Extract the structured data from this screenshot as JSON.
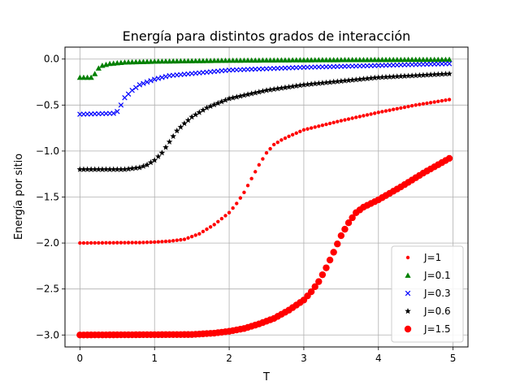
{
  "chart_data": {
    "type": "scatter",
    "title": "Energía para distintos grados de interacción",
    "xlabel": "T",
    "ylabel": "Energía por sitio",
    "xlim": [
      -0.2,
      5.2
    ],
    "ylim": [
      -3.13,
      0.13
    ],
    "xticks": [
      0,
      1,
      2,
      3,
      4,
      5
    ],
    "xtick_labels": [
      "0",
      "1",
      "2",
      "3",
      "4",
      "5"
    ],
    "yticks": [
      0.0,
      -0.5,
      -1.0,
      -1.5,
      -2.0,
      -2.5,
      -3.0
    ],
    "ytick_labels": [
      "0.0",
      "−0.5",
      "−1.0",
      "−1.5",
      "−2.0",
      "−2.5",
      "−3.0"
    ],
    "grid": true,
    "legend_position": "lower-right",
    "x_range": [
      0,
      4.95
    ],
    "x_step": 0.05,
    "series": [
      {
        "name": "J=1",
        "marker": "dot",
        "color": "#ff0000",
        "curve": [
          [
            0,
            -2.0
          ],
          [
            0.8,
            -1.995
          ],
          [
            1.0,
            -1.99
          ],
          [
            1.2,
            -1.98
          ],
          [
            1.4,
            -1.96
          ],
          [
            1.6,
            -1.9
          ],
          [
            1.8,
            -1.8
          ],
          [
            2.0,
            -1.67
          ],
          [
            2.1,
            -1.57
          ],
          [
            2.2,
            -1.45
          ],
          [
            2.3,
            -1.3
          ],
          [
            2.4,
            -1.15
          ],
          [
            2.5,
            -1.02
          ],
          [
            2.6,
            -0.93
          ],
          [
            2.7,
            -0.88
          ],
          [
            2.8,
            -0.84
          ],
          [
            3.0,
            -0.77
          ],
          [
            3.2,
            -0.73
          ],
          [
            3.5,
            -0.67
          ],
          [
            4.0,
            -0.58
          ],
          [
            4.5,
            -0.5
          ],
          [
            4.95,
            -0.44
          ]
        ]
      },
      {
        "name": "J=0.1",
        "marker": "triangle",
        "color": "#008000",
        "curve": [
          [
            0,
            -0.2
          ],
          [
            0.15,
            -0.2
          ],
          [
            0.2,
            -0.16
          ],
          [
            0.25,
            -0.1
          ],
          [
            0.3,
            -0.07
          ],
          [
            0.4,
            -0.05
          ],
          [
            0.6,
            -0.035
          ],
          [
            1.0,
            -0.025
          ],
          [
            2.0,
            -0.015
          ],
          [
            3.0,
            -0.01
          ],
          [
            4.0,
            -0.007
          ],
          [
            4.95,
            -0.005
          ]
        ]
      },
      {
        "name": "J=0.3",
        "marker": "x",
        "color": "#0000ff",
        "curve": [
          [
            0,
            -0.6
          ],
          [
            0.45,
            -0.59
          ],
          [
            0.5,
            -0.57
          ],
          [
            0.55,
            -0.5
          ],
          [
            0.6,
            -0.42
          ],
          [
            0.7,
            -0.34
          ],
          [
            0.8,
            -0.28
          ],
          [
            1.0,
            -0.22
          ],
          [
            1.2,
            -0.18
          ],
          [
            1.6,
            -0.15
          ],
          [
            2.0,
            -0.12
          ],
          [
            3.0,
            -0.09
          ],
          [
            4.0,
            -0.07
          ],
          [
            4.95,
            -0.05
          ]
        ]
      },
      {
        "name": "J=0.6",
        "marker": "star",
        "color": "#000000",
        "curve": [
          [
            0,
            -1.2
          ],
          [
            0.6,
            -1.2
          ],
          [
            0.8,
            -1.18
          ],
          [
            0.9,
            -1.15
          ],
          [
            1.0,
            -1.1
          ],
          [
            1.1,
            -1.02
          ],
          [
            1.2,
            -0.9
          ],
          [
            1.3,
            -0.78
          ],
          [
            1.4,
            -0.7
          ],
          [
            1.5,
            -0.63
          ],
          [
            1.7,
            -0.53
          ],
          [
            2.0,
            -0.43
          ],
          [
            2.5,
            -0.34
          ],
          [
            3.0,
            -0.28
          ],
          [
            4.0,
            -0.2
          ],
          [
            4.95,
            -0.16
          ]
        ]
      },
      {
        "name": "J=1.5",
        "marker": "circle",
        "color": "#ff0000",
        "curve": [
          [
            0,
            -3.0
          ],
          [
            1.5,
            -2.995
          ],
          [
            1.8,
            -2.98
          ],
          [
            2.0,
            -2.96
          ],
          [
            2.2,
            -2.93
          ],
          [
            2.4,
            -2.88
          ],
          [
            2.6,
            -2.82
          ],
          [
            2.8,
            -2.73
          ],
          [
            3.0,
            -2.62
          ],
          [
            3.1,
            -2.53
          ],
          [
            3.2,
            -2.42
          ],
          [
            3.3,
            -2.27
          ],
          [
            3.4,
            -2.1
          ],
          [
            3.5,
            -1.92
          ],
          [
            3.6,
            -1.78
          ],
          [
            3.7,
            -1.67
          ],
          [
            3.8,
            -1.61
          ],
          [
            4.0,
            -1.53
          ],
          [
            4.3,
            -1.39
          ],
          [
            4.6,
            -1.24
          ],
          [
            4.95,
            -1.08
          ]
        ]
      }
    ]
  }
}
